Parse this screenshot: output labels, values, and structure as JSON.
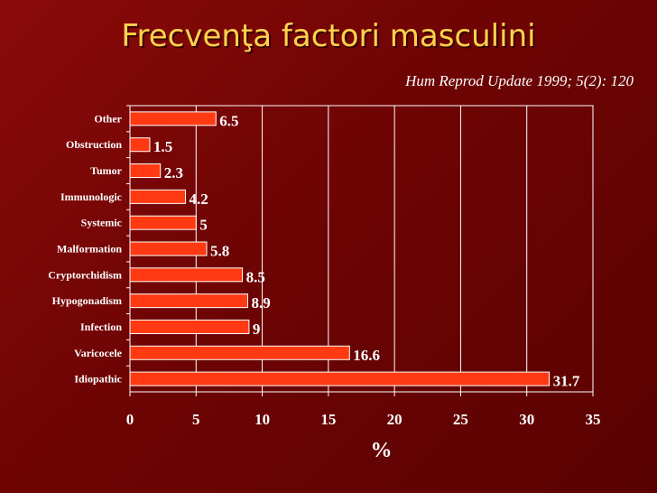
{
  "slide": {
    "title": "Frecvenţa factori masculini",
    "citation": "Hum Reprod Update 1999; 5(2): 120"
  },
  "colors": {
    "background": "#7a0606",
    "title": "#ffd24d",
    "bar_fill": "#ff3a12",
    "bar_stroke": "#ffffff",
    "text": "#ffffff",
    "grid": "#ffffff"
  },
  "chart_data": {
    "type": "bar",
    "orientation": "horizontal",
    "categories": [
      "Other",
      "Obstruction",
      "Tumor",
      "Immunologic",
      "Systemic",
      "Malformation",
      "Cryptorchidism",
      "Hypogonadism",
      "Infection",
      "Varicocele",
      "Idiopathic"
    ],
    "values": [
      6.5,
      1.5,
      2.3,
      4.2,
      5,
      5.8,
      8.5,
      8.9,
      9,
      16.6,
      31.7
    ],
    "value_labels": [
      "6.5",
      "1.5",
      "2.3",
      "4.2",
      "5",
      "5.8",
      "8.5",
      "8.9",
      "9",
      "16.6",
      "31.7"
    ],
    "xlabel": "%",
    "ylabel": "",
    "xlim": [
      0,
      35
    ],
    "xticks": [
      0,
      5,
      10,
      15,
      20,
      25,
      30,
      35
    ],
    "xtick_labels": [
      "0",
      "5",
      "10",
      "15",
      "20",
      "25",
      "30",
      "35"
    ],
    "grid": "vertical",
    "legend": "none"
  }
}
